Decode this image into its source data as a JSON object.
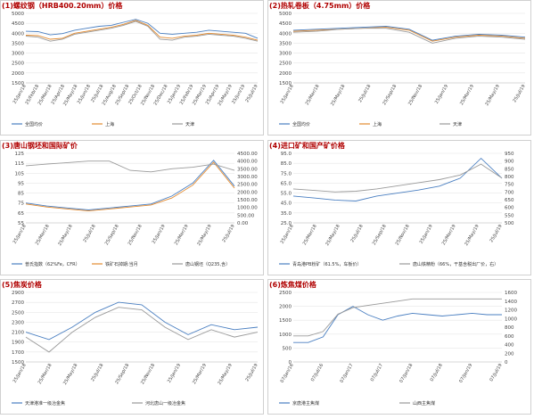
{
  "charts": [
    {
      "title": "(1)螺纹钢（HRB400.20mm）价格",
      "chart_data": {
        "type": "line",
        "title": "(1)螺纹钢（HRB400.20mm）价格",
        "xlabel": "",
        "ylabel": "",
        "ylim": [
          1500,
          5000
        ],
        "yticks": [
          "1500",
          "2000",
          "2500",
          "3000",
          "3500",
          "4000",
          "4500",
          "5000"
        ],
        "xticks": [
          "25/Jan/18",
          "25/Feb/18",
          "25/Mar/18",
          "25/Apr/18",
          "25/May/18",
          "25/Jun/18",
          "25/Jul/18",
          "25/Aug/18",
          "25/Sep/18",
          "25/Oct/18",
          "25/Nov/18",
          "25/Dec/18",
          "25/Jan/19",
          "25/Feb/19",
          "25/Mar/19",
          "25/Apr/19",
          "25/May/19",
          "25/Jun/19",
          "25/Jul/19"
        ],
        "x": [
          "25/Jan/18",
          "25/Feb/18",
          "25/Mar/18",
          "25/Apr/18",
          "25/May/18",
          "25/Jun/18",
          "25/Jul/18",
          "25/Aug/18",
          "25/Sep/18",
          "25/Oct/18",
          "25/Nov/18",
          "25/Dec/18",
          "25/Jan/19",
          "25/Feb/19",
          "25/Mar/19",
          "25/Apr/19",
          "25/May/19",
          "25/Jun/19",
          "25/Jul/19",
          "25/Aug/19"
        ],
        "series": [
          {
            "name": "全国均价",
            "color": "#4a7fc1",
            "values": [
              4100,
              4080,
              3920,
              3980,
              4150,
              4250,
              4350,
              4400,
              4550,
              4700,
              4500,
              4000,
              3950,
              4000,
              4050,
              4150,
              4100,
              4050,
              4000,
              3750
            ]
          },
          {
            "name": "上海",
            "color": "#e38a2e",
            "values": [
              3900,
              3880,
              3700,
              3750,
              4000,
              4100,
              4200,
              4300,
              4450,
              4650,
              4400,
              3800,
              3750,
              3850,
              3900,
              4000,
              3950,
              3900,
              3800,
              3650
            ]
          },
          {
            "name": "天津",
            "color": "#9a9a9a",
            "values": [
              3850,
              3800,
              3600,
              3700,
              3950,
              4050,
              4150,
              4250,
              4400,
              4600,
              4350,
              3700,
              3650,
              3800,
              3850,
              3950,
              3900,
              3850,
              3750,
              3600
            ]
          }
        ]
      }
    },
    {
      "title": "(2)热轧卷板（4.75mm）价格",
      "chart_data": {
        "type": "line",
        "title": "(2)热轧卷板（4.75mm）价格",
        "xlabel": "",
        "ylabel": "",
        "ylim": [
          1500,
          5000
        ],
        "yticks": [
          "1500",
          "2000",
          "2500",
          "3000",
          "3500",
          "4000",
          "4500",
          "5000"
        ],
        "xticks": [
          "25/Jan/18",
          "25/Mar/18",
          "25/May/18",
          "25/Jul/18",
          "25/Sep/18",
          "25/Nov/18",
          "25/Jan/19",
          "25/Mar/19",
          "25/May/19",
          "25/Jul/19"
        ],
        "x": [
          "25/Jan/18",
          "25/Mar/18",
          "25/May/18",
          "25/Jul/18",
          "25/Sep/18",
          "25/Nov/18",
          "25/Jan/19",
          "25/Mar/19",
          "25/May/19",
          "25/Jul/19",
          "25/Aug/19"
        ],
        "series": [
          {
            "name": "全国均价",
            "color": "#4a7fc1",
            "values": [
              4150,
              4200,
              4250,
              4300,
              4350,
              4200,
              3650,
              3850,
              3950,
              3900,
              3800
            ]
          },
          {
            "name": "上海",
            "color": "#e38a2e",
            "values": [
              4100,
              4150,
              4200,
              4250,
              4300,
              4150,
              3600,
              3800,
              3900,
              3850,
              3750
            ]
          },
          {
            "name": "天津",
            "color": "#9a9a9a",
            "values": [
              4050,
              4100,
              4200,
              4250,
              4250,
              4050,
              3500,
              3750,
              3850,
              3800,
              3700
            ]
          }
        ]
      }
    },
    {
      "title": "(3)唐山钢坯和国际矿价",
      "chart_data": {
        "type": "line",
        "title": "(3)唐山钢坯和国际矿价",
        "xlabel": "",
        "ylabel": "",
        "ylim": [
          55,
          125
        ],
        "ylim_right": [
          0,
          4500
        ],
        "yticks": [
          "55",
          "65",
          "75",
          "85",
          "95",
          "105",
          "115",
          "125"
        ],
        "yticks_right": [
          "0.00",
          "500.00",
          "1000.00",
          "1500.00",
          "2000.00",
          "2500.00",
          "3000.00",
          "3500.00",
          "4000.00",
          "4500.00"
        ],
        "xticks": [
          "25/Jan/18",
          "25/Mar/18",
          "25/May/18",
          "25/Jul/18",
          "25/Sep/18",
          "25/Nov/18",
          "25/Jan/19",
          "25/Mar/19",
          "25/May/19",
          "25/Jul/19"
        ],
        "x": [
          "25/Jan/18",
          "25/Mar/18",
          "25/May/18",
          "25/Jul/18",
          "25/Sep/18",
          "25/Nov/18",
          "25/Jan/19",
          "25/Mar/19",
          "25/May/19",
          "25/Jul/19",
          "25/Aug/19"
        ],
        "series": [
          {
            "name": "普氏指数（62%Fe，CFR）",
            "axis": "left",
            "color": "#4a7fc1",
            "values": [
              75,
              72,
              70,
              68,
              70,
              72,
              74,
              82,
              95,
              118,
              92
            ]
          },
          {
            "name": "铁矿石掉期:当月",
            "axis": "left",
            "color": "#e38a2e",
            "values": [
              74,
              71,
              69,
              67,
              69,
              71,
              73,
              80,
              93,
              116,
              90
            ]
          },
          {
            "name": "唐山钢坯（Q235,含）",
            "axis": "right",
            "color": "#9a9a9a",
            "values": [
              3700,
              3800,
              3900,
              4000,
              4000,
              3400,
              3300,
              3500,
              3600,
              3800,
              3400
            ]
          }
        ]
      }
    },
    {
      "title": "(4)进口矿和国产矿价格",
      "chart_data": {
        "type": "line",
        "title": "(4)进口矿和国产矿价格",
        "xlabel": "",
        "ylabel": "",
        "ylim": [
          25,
          95
        ],
        "ylim_right": [
          500,
          950
        ],
        "yticks": [
          "25.0",
          "35.0",
          "45.0",
          "55.0",
          "65.0",
          "75.0",
          "85.0",
          "95.0"
        ],
        "yticks_right": [
          "500",
          "550",
          "600",
          "650",
          "700",
          "750",
          "800",
          "850",
          "900",
          "950"
        ],
        "xticks": [
          "25/Jan/18",
          "25/Mar/18",
          "25/May/18",
          "25/Jul/18",
          "25/Sep/18",
          "25/Nov/18",
          "25/Jan/19",
          "25/Mar/19",
          "25/May/19",
          "25/Jul/19"
        ],
        "x": [
          "25/Jan/18",
          "25/Mar/18",
          "25/May/18",
          "25/Jul/18",
          "25/Sep/18",
          "25/Nov/18",
          "25/Jan/19",
          "25/Mar/19",
          "25/May/19",
          "25/Jul/19",
          "25/Aug/19"
        ],
        "series": [
          {
            "name": "青岛港PB粉矿（61.5%，车板价）",
            "axis": "left",
            "color": "#4a7fc1",
            "values": [
              52,
              50,
              48,
              47,
              52,
              55,
              58,
              62,
              70,
              90,
              70
            ]
          },
          {
            "name": "唐山铁精粉（66%，干基含税出厂价，右）",
            "axis": "right",
            "color": "#9a9a9a",
            "values": [
              720,
              710,
              700,
              705,
              720,
              740,
              760,
              780,
              810,
              880,
              790
            ]
          }
        ]
      }
    },
    {
      "title": "(5)焦炭价格",
      "chart_data": {
        "type": "line",
        "title": "(5)焦炭价格",
        "xlabel": "",
        "ylabel": "",
        "ylim": [
          1500,
          2900
        ],
        "yticks": [
          "1500",
          "1700",
          "1900",
          "2100",
          "2300",
          "2500",
          "2700",
          "2900"
        ],
        "xticks": [
          "25/Jan/18",
          "25/Mar/18",
          "25/May/18",
          "25/Jul/18",
          "25/Sep/18",
          "25/Nov/18",
          "25/Jan/19",
          "25/Mar/19",
          "25/May/19",
          "25/Jul/19"
        ],
        "x": [
          "25/Jan/18",
          "25/Mar/18",
          "25/May/18",
          "25/Jul/18",
          "25/Sep/18",
          "25/Nov/18",
          "25/Jan/19",
          "25/Mar/19",
          "25/May/19",
          "25/Jul/19",
          "25/Aug/19"
        ],
        "series": [
          {
            "name": "天津港准一级冶金焦",
            "color": "#4a7fc1",
            "values": [
              2100,
              1950,
              2200,
              2500,
              2700,
              2650,
              2300,
              2050,
              2250,
              2150,
              2200
            ]
          },
          {
            "name": "河北唐山一级冶金焦",
            "color": "#9a9a9a",
            "values": [
              2000,
              1700,
              2100,
              2400,
              2600,
              2550,
              2200,
              1950,
              2150,
              2000,
              2100
            ]
          }
        ]
      }
    },
    {
      "title": "(6)炼焦煤价格",
      "chart_data": {
        "type": "line",
        "title": "(6)炼焦煤价格",
        "xlabel": "",
        "ylabel": "",
        "ylim": [
          0,
          2500
        ],
        "ylim_right": [
          0,
          1600
        ],
        "yticks": [
          "0",
          "500",
          "1000",
          "1500",
          "2000",
          "2500"
        ],
        "yticks_right": [
          "0",
          "200",
          "400",
          "600",
          "800",
          "1000",
          "1200",
          "1400",
          "1600"
        ],
        "xticks": [
          "07/Jan/16",
          "07/Jul/16",
          "07/Jan/17",
          "07/Jul/17",
          "07/Jan/18",
          "07/Jul/18",
          "07/Jan/19",
          "07/Jul/19"
        ],
        "x": [
          "07/Jan/16",
          "07/Apr/16",
          "07/Jul/16",
          "07/Oct/16",
          "07/Jan/17",
          "07/Apr/17",
          "07/Jul/17",
          "07/Oct/17",
          "07/Jan/18",
          "07/Apr/18",
          "07/Jul/18",
          "07/Oct/18",
          "07/Jan/19",
          "07/Apr/19",
          "07/Jul/19"
        ],
        "series": [
          {
            "name": "京唐港主焦煤",
            "axis": "left",
            "color": "#4a7fc1",
            "values": [
              700,
              700,
              900,
              1700,
              2000,
              1700,
              1500,
              1650,
              1750,
              1700,
              1650,
              1700,
              1750,
              1700,
              1700
            ]
          },
          {
            "name": "山西主焦煤",
            "axis": "right",
            "color": "#9a9a9a",
            "values": [
              600,
              600,
              700,
              1100,
              1250,
              1300,
              1350,
              1400,
              1450,
              1450,
              1450,
              1450,
              1450,
              1450,
              1450
            ]
          }
        ]
      }
    }
  ]
}
